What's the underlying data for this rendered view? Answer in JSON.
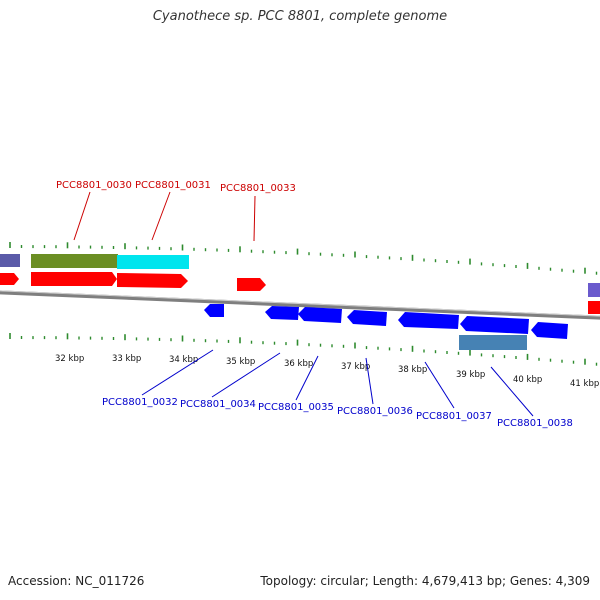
{
  "title": "Cyanothece sp. PCC 8801, complete genome",
  "footer": {
    "accession": "Accession: NC_011726",
    "topology": "Topology: circular; Length: 4,679,413 bp; Genes: 4,309"
  },
  "colors": {
    "tick": "#2e8b2e",
    "backbone": "#7f7f7f",
    "forward_cds": "#ff0000",
    "reverse_cds": "#0000ff",
    "olive_feature": "#6b8e23",
    "cyan_feature": "#00ffff",
    "steelblue_feature": "#4682b4",
    "slate_feature": "#6a5acd",
    "forward_label": "#cc0000",
    "reverse_label": "#0000cc"
  },
  "scale_labels": [
    "32 kbp",
    "33 kbp",
    "34 kbp",
    "35 kbp",
    "36 kbp",
    "37 kbp",
    "38 kbp",
    "39 kbp",
    "40 kbp",
    "41 kbp"
  ],
  "forward_gene_labels": [
    "PCC8801_0030",
    "PCC8801_0031",
    "PCC8801_0033"
  ],
  "reverse_gene_labels": [
    "PCC8801_0032",
    "PCC8801_0034",
    "PCC8801_0035",
    "PCC8801_0036",
    "PCC8801_0037",
    "PCC8801_0038"
  ]
}
